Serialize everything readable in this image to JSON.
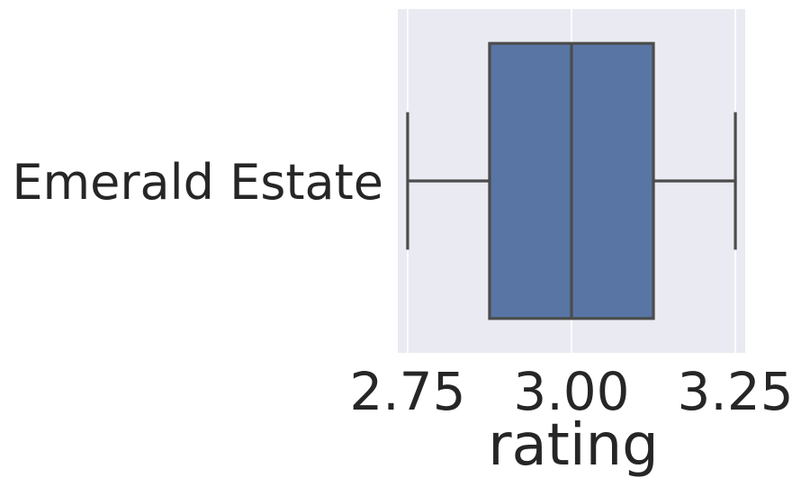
{
  "colors": {
    "plot_background": "#EAEAF2",
    "grid": "#ffffff",
    "box_fill": "#5875A4",
    "box_stroke": "#4C4C4C",
    "text": "#262626"
  },
  "chart_data": {
    "type": "boxplot",
    "orientation": "horizontal",
    "title": "",
    "xlabel": "rating",
    "ylabel": "",
    "xlim": [
      2.735,
      3.265
    ],
    "xticks": [
      2.75,
      3.0,
      3.25
    ],
    "xtick_labels": [
      "2.75",
      "3.00",
      "3.25"
    ],
    "grid": true,
    "categories": [
      "Emerald Estate"
    ],
    "boxes": [
      {
        "category": "Emerald Estate",
        "whisker_low": 2.75,
        "q1": 2.875,
        "median": 3.0,
        "q3": 3.125,
        "whisker_high": 3.25
      }
    ]
  }
}
